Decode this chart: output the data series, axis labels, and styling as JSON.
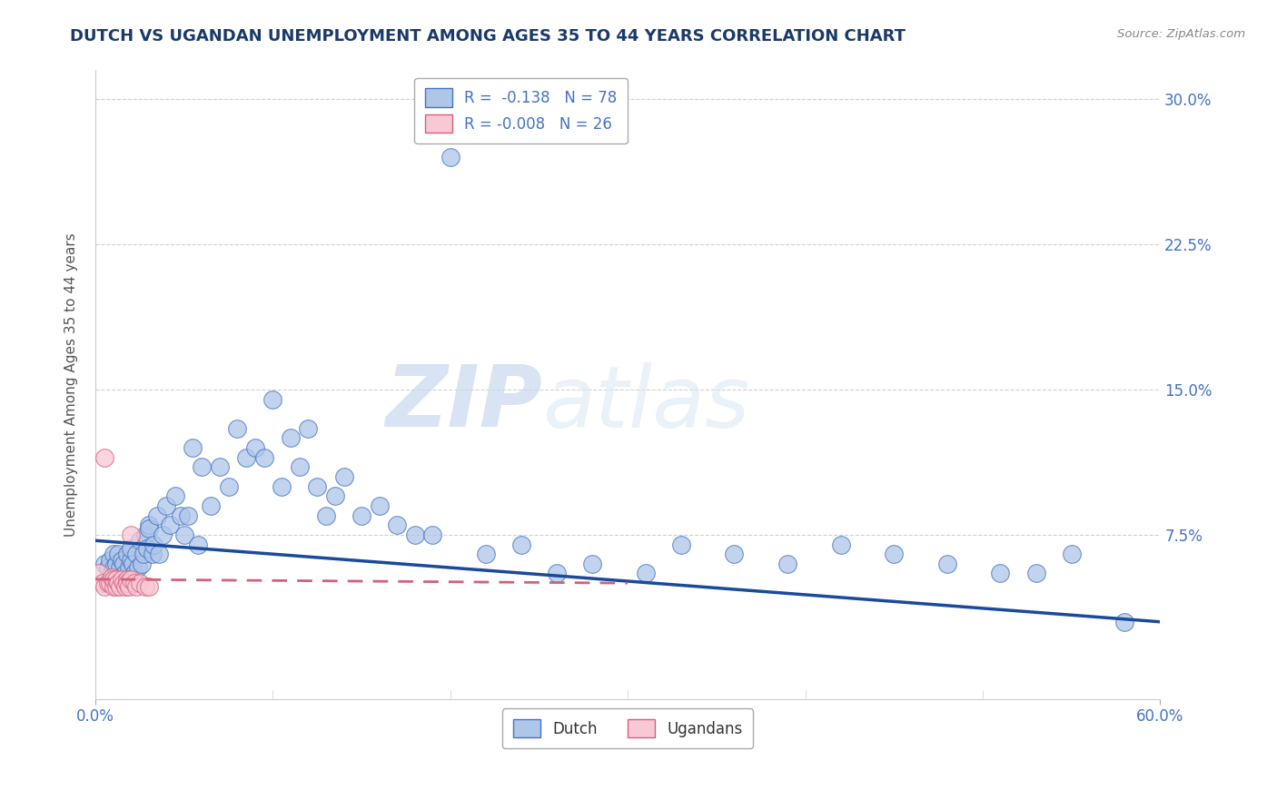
{
  "title": "DUTCH VS UGANDAN UNEMPLOYMENT AMONG AGES 35 TO 44 YEARS CORRELATION CHART",
  "source": "Source: ZipAtlas.com",
  "ylabel": "Unemployment Among Ages 35 to 44 years",
  "xlim": [
    0.0,
    0.6
  ],
  "ylim": [
    -0.01,
    0.315
  ],
  "xtick_positions": [
    0.0,
    0.6
  ],
  "xticklabels": [
    "0.0%",
    "60.0%"
  ],
  "ytick_positions": [
    0.075,
    0.15,
    0.225,
    0.3
  ],
  "ytick_labels": [
    "7.5%",
    "15.0%",
    "22.5%",
    "30.0%"
  ],
  "dutch_R": -0.138,
  "dutch_N": 78,
  "ugandan_R": -0.008,
  "ugandan_N": 26,
  "title_color": "#1a3a6b",
  "title_fontsize": 13,
  "axis_tick_color": "#4472c4",
  "dutch_color": "#aec6e8",
  "dutch_edge_color": "#4472c4",
  "ugandan_color": "#f9c8d5",
  "ugandan_edge_color": "#d4607a",
  "dutch_line_color": "#1a4a9c",
  "ugandan_line_color": "#d4607a",
  "background_color": "#ffffff",
  "grid_color": "#d0d0d0",
  "dutch_x": [
    0.005,
    0.007,
    0.008,
    0.009,
    0.01,
    0.01,
    0.012,
    0.013,
    0.014,
    0.015,
    0.016,
    0.017,
    0.018,
    0.019,
    0.02,
    0.02,
    0.021,
    0.022,
    0.023,
    0.024,
    0.025,
    0.026,
    0.027,
    0.028,
    0.029,
    0.03,
    0.03,
    0.032,
    0.033,
    0.035,
    0.036,
    0.038,
    0.04,
    0.042,
    0.045,
    0.048,
    0.05,
    0.052,
    0.055,
    0.058,
    0.06,
    0.065,
    0.07,
    0.075,
    0.08,
    0.085,
    0.09,
    0.095,
    0.1,
    0.105,
    0.11,
    0.115,
    0.12,
    0.125,
    0.13,
    0.135,
    0.14,
    0.15,
    0.16,
    0.17,
    0.18,
    0.19,
    0.2,
    0.22,
    0.24,
    0.26,
    0.28,
    0.31,
    0.33,
    0.36,
    0.39,
    0.42,
    0.45,
    0.48,
    0.51,
    0.53,
    0.55,
    0.58
  ],
  "dutch_y": [
    0.06,
    0.058,
    0.062,
    0.055,
    0.065,
    0.058,
    0.06,
    0.065,
    0.058,
    0.062,
    0.06,
    0.055,
    0.065,
    0.058,
    0.062,
    0.068,
    0.06,
    0.055,
    0.065,
    0.058,
    0.072,
    0.06,
    0.065,
    0.075,
    0.068,
    0.08,
    0.078,
    0.065,
    0.07,
    0.085,
    0.065,
    0.075,
    0.09,
    0.08,
    0.095,
    0.085,
    0.075,
    0.085,
    0.12,
    0.07,
    0.11,
    0.09,
    0.11,
    0.1,
    0.13,
    0.115,
    0.12,
    0.115,
    0.145,
    0.1,
    0.125,
    0.11,
    0.13,
    0.1,
    0.085,
    0.095,
    0.105,
    0.085,
    0.09,
    0.08,
    0.075,
    0.075,
    0.27,
    0.065,
    0.07,
    0.055,
    0.06,
    0.055,
    0.07,
    0.065,
    0.06,
    0.07,
    0.065,
    0.06,
    0.055,
    0.055,
    0.065,
    0.03
  ],
  "ugandan_x": [
    0.002,
    0.004,
    0.005,
    0.005,
    0.007,
    0.008,
    0.009,
    0.01,
    0.01,
    0.012,
    0.012,
    0.013,
    0.014,
    0.015,
    0.016,
    0.017,
    0.018,
    0.018,
    0.019,
    0.02,
    0.02,
    0.022,
    0.023,
    0.025,
    0.028,
    0.03
  ],
  "ugandan_y": [
    0.055,
    0.05,
    0.048,
    0.115,
    0.05,
    0.05,
    0.053,
    0.048,
    0.052,
    0.048,
    0.052,
    0.05,
    0.048,
    0.052,
    0.05,
    0.048,
    0.052,
    0.05,
    0.048,
    0.052,
    0.075,
    0.05,
    0.048,
    0.05,
    0.048,
    0.048
  ],
  "dutch_trend_x": [
    0.0,
    0.6
  ],
  "dutch_trend_y": [
    0.072,
    0.03
  ],
  "ugandan_trend_x": [
    0.0,
    0.3
  ],
  "ugandan_trend_y": [
    0.052,
    0.05
  ],
  "legend_dutch_label": "Dutch",
  "legend_ugandan_label": "Ugandans"
}
